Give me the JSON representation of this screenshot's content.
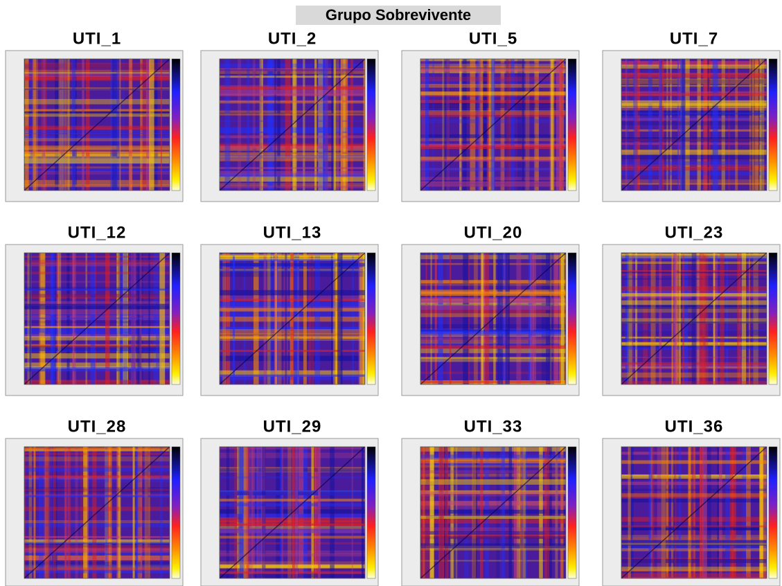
{
  "title": "Grupo Sobrevivente",
  "panels": [
    {
      "title": "UTI_1"
    },
    {
      "title": "UTI_2"
    },
    {
      "title": "UTI_5"
    },
    {
      "title": "UTI_7"
    },
    {
      "title": "UTI_12"
    },
    {
      "title": "UTI_13"
    },
    {
      "title": "UTI_20"
    },
    {
      "title": "UTI_23"
    },
    {
      "title": "UTI_28"
    },
    {
      "title": "UTI_29"
    },
    {
      "title": "UTI_33"
    },
    {
      "title": "UTI_36"
    }
  ]
}
